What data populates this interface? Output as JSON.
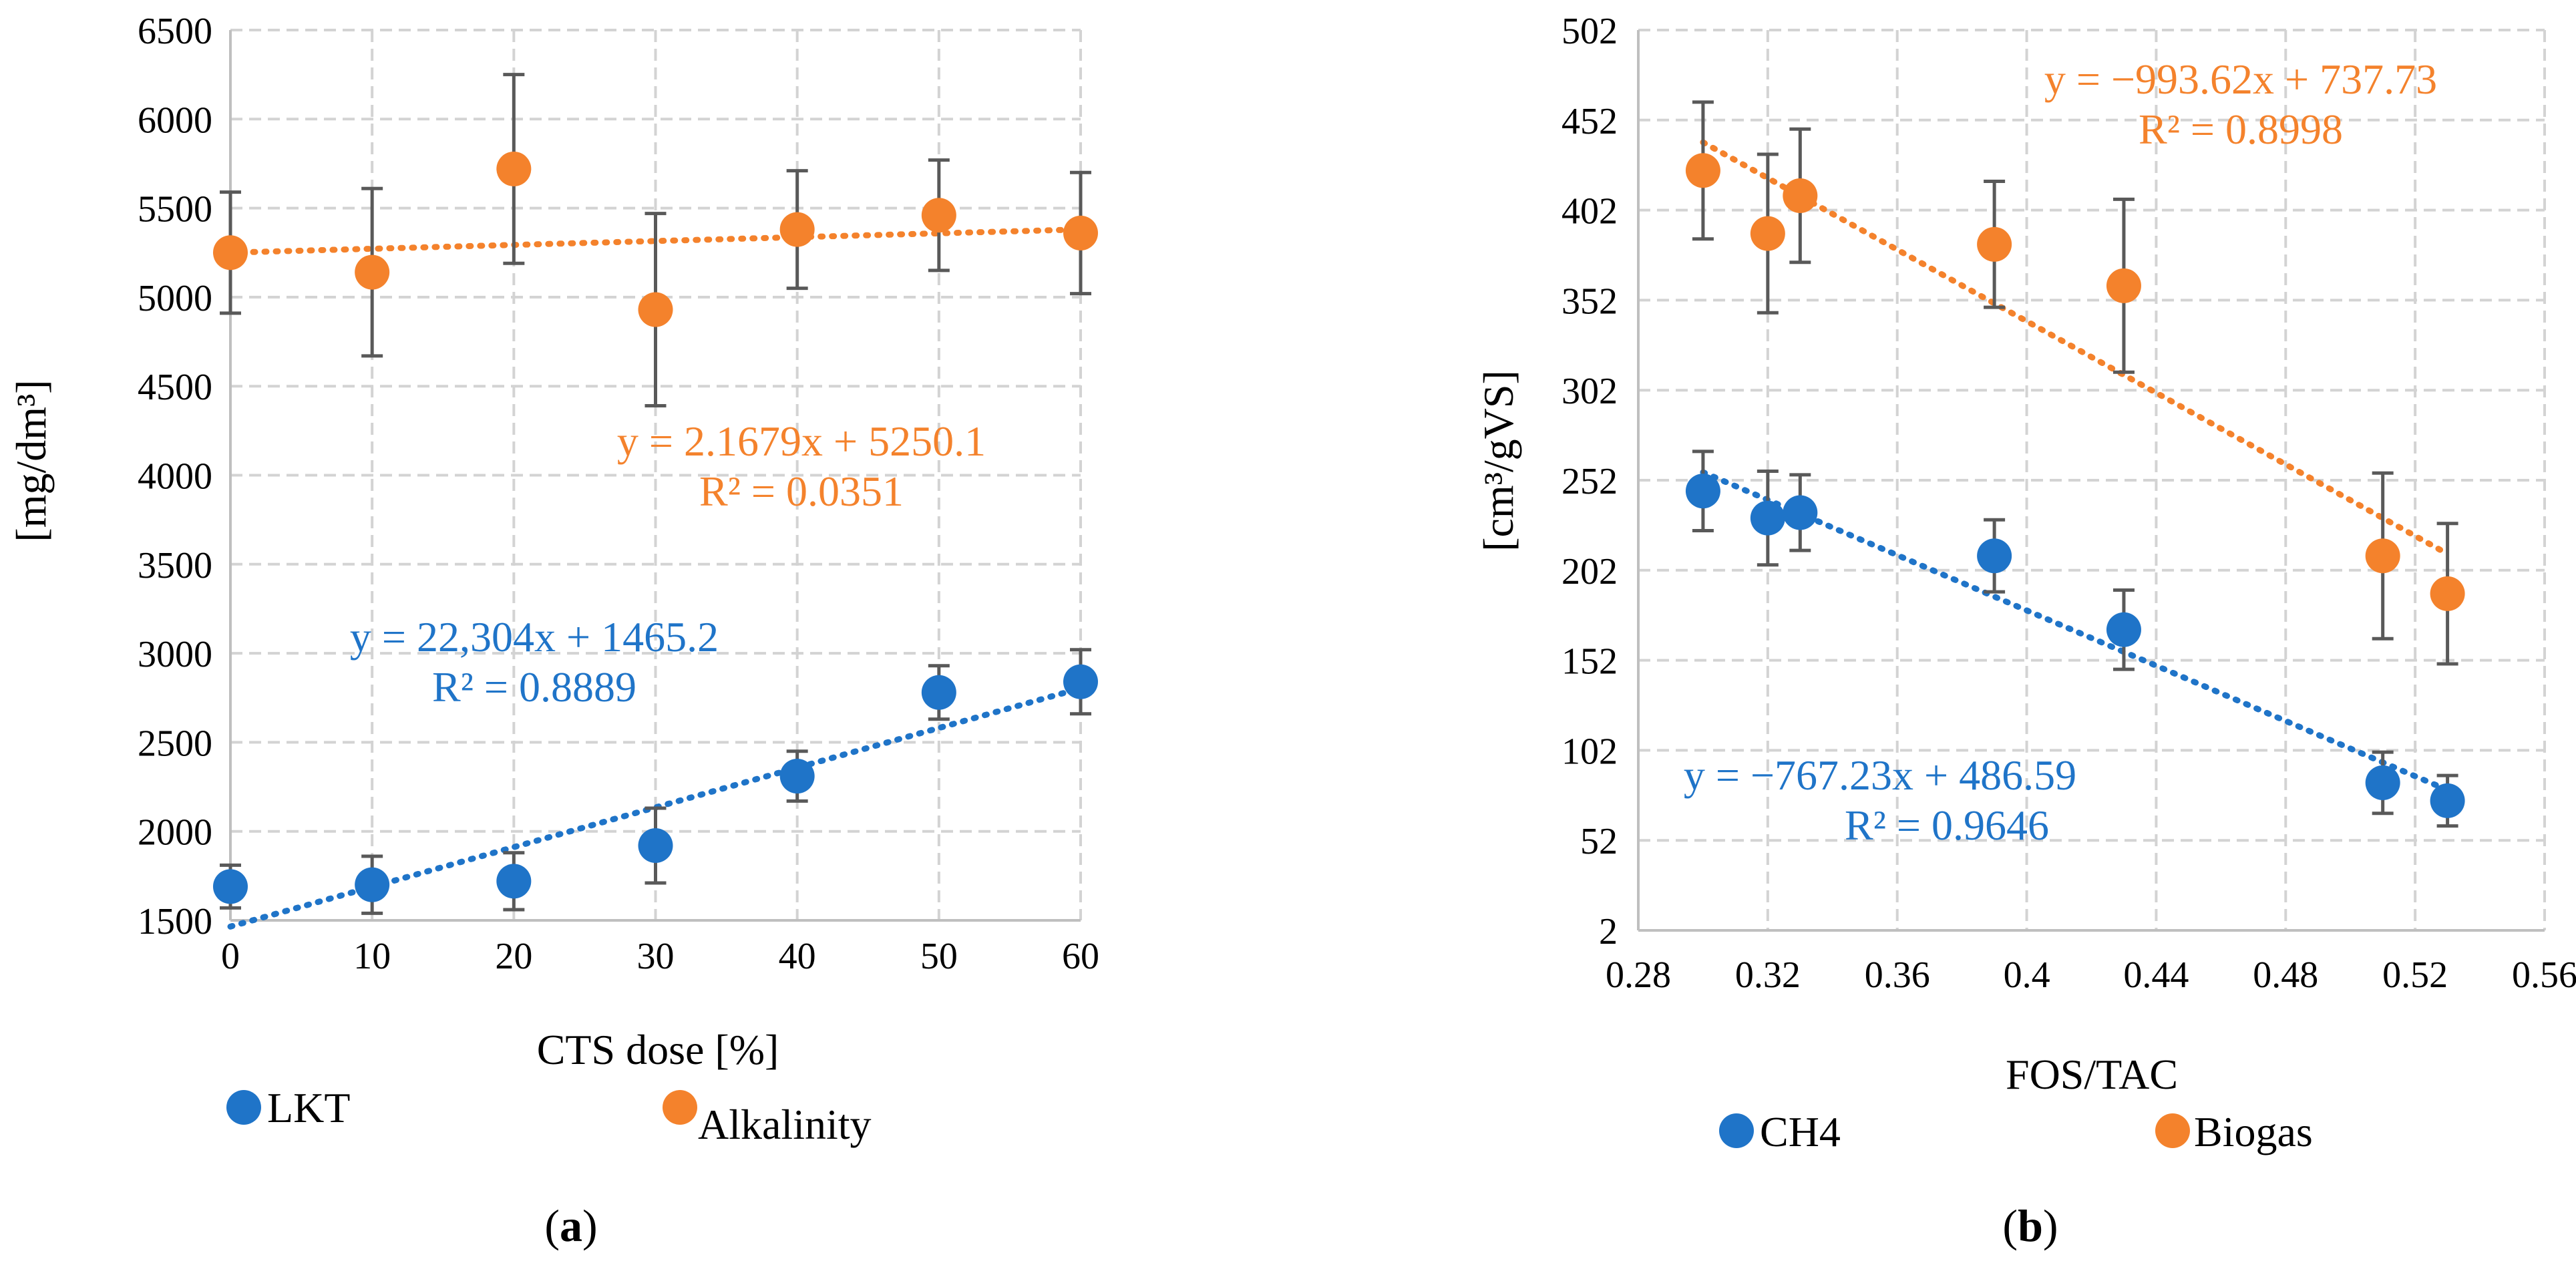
{
  "colors": {
    "blue": "#1f74c8",
    "orange": "#f4822c",
    "grid": "#d3d3d3",
    "axis": "#bfbfbf",
    "errorbar": "#595959",
    "text": "#000000"
  },
  "chart_data": [
    {
      "panel_label": "a",
      "type": "scatter",
      "xlabel": "CTS dose [%]",
      "ylabel": "[mg/dm³]",
      "xlim": [
        0,
        60
      ],
      "ylim": [
        1500,
        6500
      ],
      "x_ticks": [
        0,
        10,
        20,
        30,
        40,
        50,
        60
      ],
      "x_tick_labels": [
        "0",
        "10",
        "20",
        "30",
        "40",
        "50",
        "60"
      ],
      "y_ticks": [
        1500,
        2000,
        2500,
        3000,
        3500,
        4000,
        4500,
        5000,
        5500,
        6000,
        6500
      ],
      "y_tick_labels": [
        "1500",
        "2000",
        "2500",
        "3000",
        "3500",
        "4000",
        "4500",
        "5000",
        "5500",
        "6000",
        "6500"
      ],
      "grid": true,
      "legend_position": "bottom",
      "series": [
        {
          "name": "LKT",
          "color_key": "blue",
          "x": [
            0,
            10,
            20,
            30,
            40,
            50,
            60
          ],
          "y": [
            1690,
            1700,
            1720,
            1920,
            2310,
            2780,
            2840
          ],
          "err": [
            120,
            160,
            160,
            210,
            140,
            150,
            180
          ],
          "trendline": {
            "slope": 22.304,
            "intercept": 1465.2,
            "x_range": [
              0,
              60
            ]
          },
          "equation": "y = 22,304x + 1465.2",
          "r2": "R² = 0.8889"
        },
        {
          "name": "Alkalinity",
          "color_key": "orange",
          "x": [
            0,
            10,
            20,
            30,
            40,
            50,
            60
          ],
          "y": [
            5250,
            5140,
            5720,
            4930,
            5380,
            5460,
            5360
          ],
          "err": [
            340,
            470,
            530,
            540,
            330,
            310,
            340
          ],
          "trendline": {
            "slope": 2.1679,
            "intercept": 5250.1,
            "x_range": [
              0,
              60
            ]
          },
          "equation": "y = 2.1679x + 5250.1",
          "r2": "R² = 0.0351"
        }
      ]
    },
    {
      "panel_label": "b",
      "type": "scatter",
      "xlabel": "FOS/TAC",
      "ylabel": "[cm³/gVS]",
      "xlim": [
        0.28,
        0.56
      ],
      "ylim": [
        2,
        502
      ],
      "x_ticks": [
        0.28,
        0.32,
        0.36,
        0.4,
        0.44,
        0.48,
        0.52,
        0.56
      ],
      "x_tick_labels": [
        "0.28",
        "0.32",
        "0.36",
        "0.4",
        "0.44",
        "0.48",
        "0.52",
        "0.56"
      ],
      "y_ticks": [
        2,
        52,
        102,
        152,
        202,
        252,
        302,
        352,
        402,
        452,
        502
      ],
      "y_tick_labels": [
        "2",
        "52",
        "102",
        "152",
        "202",
        "252",
        "302",
        "352",
        "402",
        "452",
        "502"
      ],
      "grid": true,
      "legend_position": "bottom",
      "series": [
        {
          "name": "CH4",
          "color_key": "blue",
          "x": [
            0.3,
            0.32,
            0.33,
            0.39,
            0.43,
            0.51,
            0.53
          ],
          "y": [
            246,
            231,
            234,
            210,
            169,
            84,
            74
          ],
          "err": [
            22,
            26,
            21,
            20,
            22,
            17,
            14
          ],
          "trendline": {
            "slope": -767.23,
            "intercept": 486.59,
            "x_range": [
              0.3,
              0.53
            ]
          },
          "equation": "y = −767.23x + 486.59",
          "r2": "R² = 0.9646"
        },
        {
          "name": "Biogas",
          "color_key": "orange",
          "x": [
            0.3,
            0.32,
            0.33,
            0.39,
            0.43,
            0.51,
            0.53
          ],
          "y": [
            424,
            389,
            410,
            383,
            360,
            210,
            189
          ],
          "err": [
            38,
            44,
            37,
            35,
            48,
            46,
            39
          ],
          "trendline": {
            "slope": -993.62,
            "intercept": 737.73,
            "x_range": [
              0.3,
              0.53
            ]
          },
          "equation": "y = −993.62x + 737.73",
          "r2": "R² = 0.8998"
        }
      ]
    }
  ]
}
